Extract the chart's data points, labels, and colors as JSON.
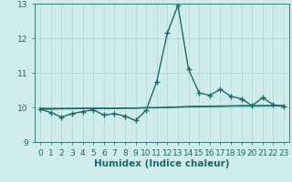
{
  "xlabel": "Humidex (Indice chaleur)",
  "x": [
    0,
    1,
    2,
    3,
    4,
    5,
    6,
    7,
    8,
    9,
    10,
    11,
    12,
    13,
    14,
    15,
    16,
    17,
    18,
    19,
    20,
    21,
    22,
    23
  ],
  "y_main": [
    9.95,
    9.85,
    9.72,
    9.82,
    9.88,
    9.93,
    9.78,
    9.82,
    9.75,
    9.62,
    9.92,
    10.75,
    12.15,
    12.95,
    11.1,
    10.42,
    10.35,
    10.52,
    10.32,
    10.25,
    10.05,
    10.28,
    10.08,
    10.02
  ],
  "y_flat1": [
    9.95,
    9.95,
    9.96,
    9.96,
    9.97,
    9.97,
    9.97,
    9.97,
    9.98,
    9.98,
    9.99,
    9.99,
    10.0,
    10.01,
    10.02,
    10.03,
    10.03,
    10.04,
    10.04,
    10.05,
    10.05,
    10.05,
    10.05,
    10.05
  ],
  "y_flat2": [
    9.97,
    9.97,
    9.97,
    9.97,
    9.97,
    9.97,
    9.97,
    9.97,
    9.98,
    9.98,
    9.99,
    9.99,
    10.0,
    10.01,
    10.02,
    10.02,
    10.03,
    10.03,
    10.04,
    10.04,
    10.04,
    10.04,
    10.05,
    10.05
  ],
  "ylim": [
    9.0,
    13.0
  ],
  "xlim": [
    -0.5,
    23.5
  ],
  "line_color": "#1a6b6b",
  "bg_color": "#d0ecea",
  "grid_color": "#b0d5d5",
  "marker": "+",
  "marker_size": 4,
  "linewidth": 1.0,
  "yticks": [
    9,
    10,
    11,
    12,
    13
  ],
  "xticks": [
    0,
    1,
    2,
    3,
    4,
    5,
    6,
    7,
    8,
    9,
    10,
    11,
    12,
    13,
    14,
    15,
    16,
    17,
    18,
    19,
    20,
    21,
    22,
    23
  ],
  "tick_fontsize": 6.5,
  "xlabel_fontsize": 7.5
}
